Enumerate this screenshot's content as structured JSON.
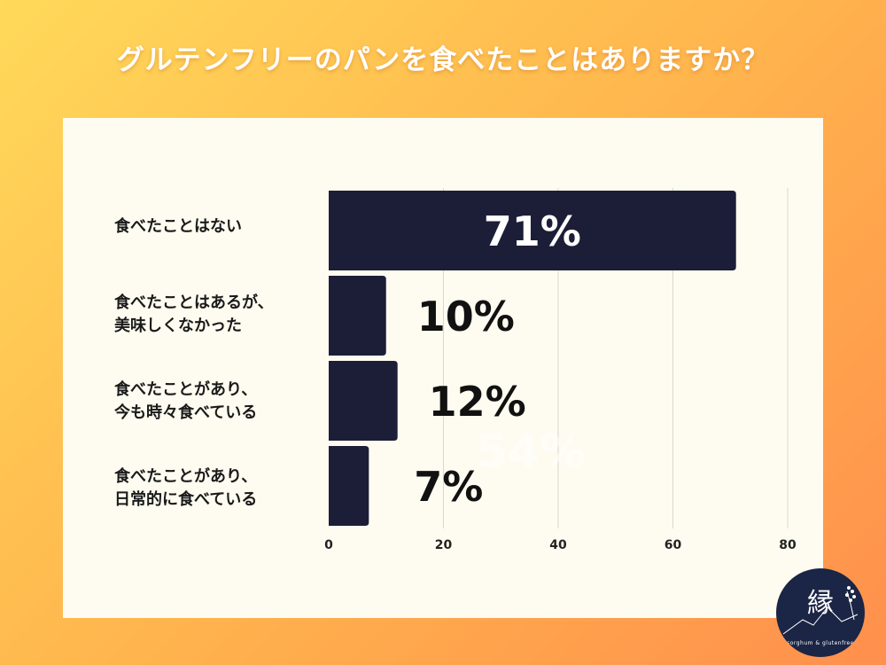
{
  "title": "グルテンフリーのパンを食べたことはありますか？",
  "chart_data": {
    "type": "bar",
    "orientation": "horizontal",
    "categories": [
      "食べたことはない",
      "食べたことはあるが、\n美味しくなかった",
      "食べたことがあり、\n今も時々食べている",
      "食べたことがあり、\n日常的に食べている"
    ],
    "values": [
      71,
      10,
      12,
      7
    ],
    "value_labels": [
      "71%",
      "10%",
      "12%",
      "7%"
    ],
    "watermark_text": "54%",
    "xlim": [
      0,
      80
    ],
    "xticks": [
      0,
      20,
      40,
      60,
      80
    ],
    "grid": true
  },
  "colors": {
    "bar": "#1c1e38",
    "label_inside": "#ffffff",
    "label_outside": "#111111",
    "grid": "#d8d8d0",
    "panel": "#fefcf0"
  },
  "logo": {
    "mark": "縁",
    "subtitle": "sorghum & glutenfree"
  }
}
